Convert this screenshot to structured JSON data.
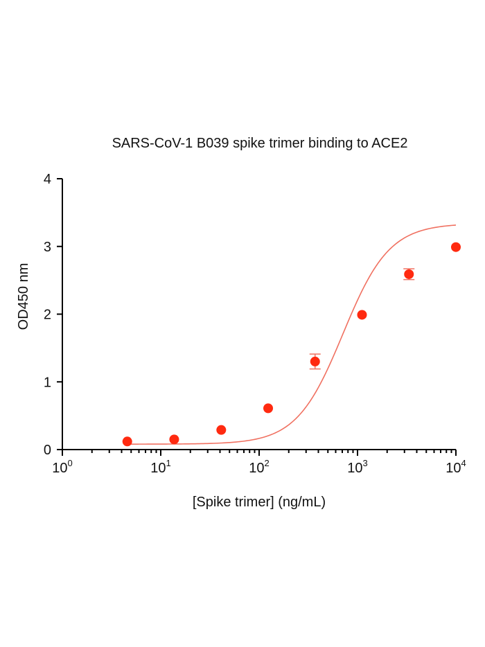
{
  "chart_data": {
    "type": "scatter",
    "title": "SARS-CoV-1 B039 spike trimer binding to ACE2",
    "xlabel": "[Spike trimer]  (ng/mL)",
    "ylabel": "OD450 nm",
    "x_scale": "log",
    "xlim": [
      1,
      10000
    ],
    "ylim": [
      0,
      4
    ],
    "x_ticks": [
      {
        "base": "10",
        "exp": "0"
      },
      {
        "base": "10",
        "exp": "1"
      },
      {
        "base": "10",
        "exp": "2"
      },
      {
        "base": "10",
        "exp": "3"
      },
      {
        "base": "10",
        "exp": "4"
      }
    ],
    "y_ticks": [
      "0",
      "1",
      "2",
      "3",
      "4"
    ],
    "series": [
      {
        "x": [
          4.57,
          13.7,
          41.2,
          123.5,
          370.4,
          1111,
          3333,
          10000
        ],
        "y": [
          0.12,
          0.15,
          0.29,
          0.61,
          1.3,
          1.99,
          2.59,
          2.99
        ],
        "error": [
          0.02,
          0.02,
          0.02,
          0.02,
          0.11,
          0.03,
          0.08,
          0.02
        ],
        "color": "#ff2a10",
        "fit_color": "#f07060",
        "fit": "four-parameter logistic"
      }
    ],
    "grid": false,
    "legend": "none"
  }
}
